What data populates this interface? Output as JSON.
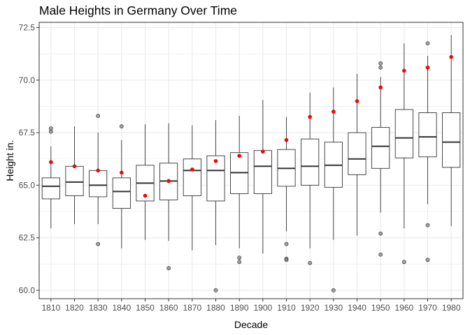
{
  "chart_data": {
    "type": "box",
    "title": "Male Heights in Germany Over Time",
    "xlabel": "Decade",
    "ylabel": "Height in.",
    "categories": [
      "1810",
      "1820",
      "1830",
      "1840",
      "1850",
      "1860",
      "1870",
      "1880",
      "1890",
      "1900",
      "1910",
      "1920",
      "1930",
      "1940",
      "1950",
      "1960",
      "1970",
      "1980"
    ],
    "ylim": [
      59.6,
      72.75
    ],
    "yticks": [
      60.0,
      62.5,
      65.0,
      67.5,
      70.0,
      72.5
    ],
    "ytick_labels": [
      "60.0",
      "62.5",
      "65.0",
      "67.5",
      "70.0",
      "72.5"
    ],
    "grid": true,
    "colors": {
      "box": "#333333",
      "mean": "#ff0000",
      "outlier": "#7f7f7f",
      "grid": "#ebebeb",
      "panel_border": "#333333"
    },
    "boxes": [
      {
        "category": "1810",
        "min": 62.95,
        "q1": 64.35,
        "median": 64.95,
        "q3": 65.35,
        "max": 66.85,
        "mean": 66.1,
        "outliers": [
          67.55,
          67.7
        ]
      },
      {
        "category": "1820",
        "min": 63.15,
        "q1": 64.5,
        "median": 65.15,
        "q3": 65.9,
        "max": 67.8,
        "mean": 65.9,
        "outliers": []
      },
      {
        "category": "1830",
        "min": 63.15,
        "q1": 64.45,
        "median": 65.0,
        "q3": 65.7,
        "max": 67.5,
        "mean": 65.7,
        "outliers": [
          68.3,
          62.2
        ]
      },
      {
        "category": "1840",
        "min": 62.0,
        "q1": 63.9,
        "median": 64.7,
        "q3": 65.35,
        "max": 67.15,
        "mean": 65.6,
        "outliers": [
          67.8
        ]
      },
      {
        "category": "1850",
        "min": 62.4,
        "q1": 64.25,
        "median": 65.1,
        "q3": 65.95,
        "max": 67.9,
        "mean": 64.5,
        "outliers": []
      },
      {
        "category": "1860",
        "min": 62.35,
        "q1": 64.3,
        "median": 65.2,
        "q3": 66.05,
        "max": 67.95,
        "mean": 65.2,
        "outliers": [
          61.05
        ]
      },
      {
        "category": "1870",
        "min": 61.9,
        "q1": 64.5,
        "median": 65.7,
        "q3": 66.25,
        "max": 67.85,
        "mean": 65.75,
        "outliers": []
      },
      {
        "category": "1880",
        "min": 62.15,
        "q1": 64.25,
        "median": 65.7,
        "q3": 66.4,
        "max": 68.1,
        "mean": 66.15,
        "outliers": [
          60.0
        ]
      },
      {
        "category": "1890",
        "min": 62.0,
        "q1": 64.6,
        "median": 65.6,
        "q3": 66.55,
        "max": 68.3,
        "mean": 66.4,
        "outliers": [
          61.55,
          61.35
        ]
      },
      {
        "category": "1900",
        "min": 61.75,
        "q1": 64.6,
        "median": 65.9,
        "q3": 66.65,
        "max": 69.05,
        "mean": 66.6,
        "outliers": []
      },
      {
        "category": "1910",
        "min": 62.8,
        "q1": 64.95,
        "median": 65.8,
        "q3": 66.7,
        "max": 68.25,
        "mean": 67.15,
        "outliers": [
          62.2,
          61.5,
          61.45
        ]
      },
      {
        "category": "1920",
        "min": 62.0,
        "q1": 65.0,
        "median": 65.9,
        "q3": 67.2,
        "max": 69.4,
        "mean": 68.25,
        "outliers": [
          61.3
        ]
      },
      {
        "category": "1930",
        "min": 62.4,
        "q1": 64.9,
        "median": 65.95,
        "q3": 67.05,
        "max": 69.65,
        "mean": 68.5,
        "outliers": [
          60.0
        ]
      },
      {
        "category": "1940",
        "min": 62.6,
        "q1": 65.5,
        "median": 66.25,
        "q3": 67.5,
        "max": 70.3,
        "mean": 69.0,
        "outliers": []
      },
      {
        "category": "1950",
        "min": 63.7,
        "q1": 65.8,
        "median": 66.85,
        "q3": 67.75,
        "max": 70.15,
        "mean": 69.65,
        "outliers": [
          70.8,
          70.6,
          62.7,
          61.7
        ]
      },
      {
        "category": "1960",
        "min": 62.95,
        "q1": 66.3,
        "median": 67.25,
        "q3": 68.6,
        "max": 71.75,
        "mean": 70.45,
        "outliers": [
          61.35
        ]
      },
      {
        "category": "1970",
        "min": 64.1,
        "q1": 66.35,
        "median": 67.3,
        "q3": 68.45,
        "max": 71.15,
        "mean": 70.6,
        "outliers": [
          71.75,
          63.1,
          61.45
        ]
      },
      {
        "category": "1980",
        "min": 63.05,
        "q1": 65.85,
        "median": 67.05,
        "q3": 68.45,
        "max": 72.15,
        "mean": 71.1,
        "outliers": []
      }
    ]
  }
}
